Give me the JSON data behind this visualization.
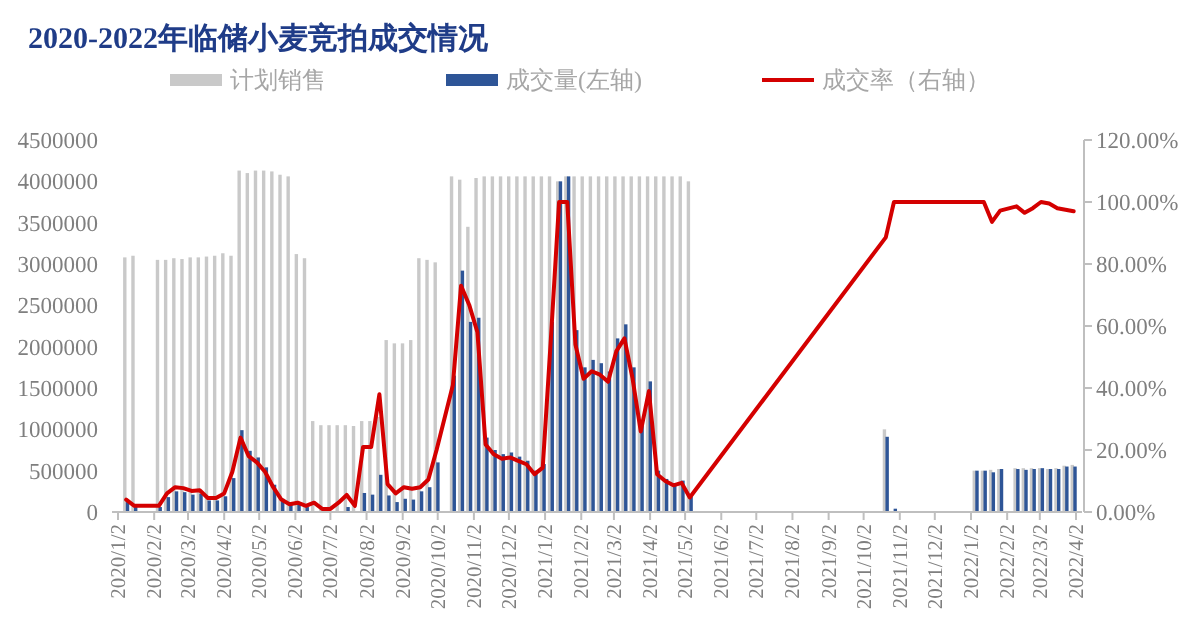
{
  "chart_data": {
    "type": "bar",
    "title": "2020-2022年临储小麦竞拍成交情况",
    "legend": "top",
    "xlim": [
      "2020-01-02",
      "2022-04-02"
    ],
    "xticks": [
      {
        "value": "2020-01-02",
        "label": "2020/1/2"
      },
      {
        "value": "2020-02-02",
        "label": "2020/2/2"
      },
      {
        "value": "2020-03-02",
        "label": "2020/3/2"
      },
      {
        "value": "2020-04-02",
        "label": "2020/4/2"
      },
      {
        "value": "2020-05-02",
        "label": "2020/5/2"
      },
      {
        "value": "2020-06-02",
        "label": "2020/6/2"
      },
      {
        "value": "2020-07-02",
        "label": "2020/7/2"
      },
      {
        "value": "2020-08-02",
        "label": "2020/8/2"
      },
      {
        "value": "2020-09-02",
        "label": "2020/9/2"
      },
      {
        "value": "2020-10-02",
        "label": "2020/10/2"
      },
      {
        "value": "2020-11-02",
        "label": "2020/11/2"
      },
      {
        "value": "2020-12-02",
        "label": "2020/12/2"
      },
      {
        "value": "2021-01-02",
        "label": "2021/1/2"
      },
      {
        "value": "2021-02-02",
        "label": "2021/2/2"
      },
      {
        "value": "2021-03-02",
        "label": "2021/3/2"
      },
      {
        "value": "2021-04-02",
        "label": "2021/4/2"
      },
      {
        "value": "2021-05-02",
        "label": "2021/5/2"
      },
      {
        "value": "2021-06-02",
        "label": "2021/6/2"
      },
      {
        "value": "2021-07-02",
        "label": "2021/7/2"
      },
      {
        "value": "2021-08-02",
        "label": "2021/8/2"
      },
      {
        "value": "2021-09-02",
        "label": "2021/9/2"
      },
      {
        "value": "2021-10-02",
        "label": "2021/10/2"
      },
      {
        "value": "2021-11-02",
        "label": "2021/11/2"
      },
      {
        "value": "2021-12-02",
        "label": "2021/12/2"
      },
      {
        "value": "2022-01-02",
        "label": "2022/1/2"
      },
      {
        "value": "2022-02-02",
        "label": "2022/2/2"
      },
      {
        "value": "2022-03-02",
        "label": "2022/3/2"
      },
      {
        "value": "2022-04-02",
        "label": "2022/4/2"
      }
    ],
    "ylim": [
      0,
      4500000
    ],
    "yticks": [
      0,
      500000,
      1000000,
      1500000,
      2000000,
      2500000,
      3000000,
      3500000,
      4000000,
      4500000
    ],
    "y2lim": [
      0,
      120
    ],
    "y2ticks": [
      {
        "value": 0,
        "label": "0.00%"
      },
      {
        "value": 20,
        "label": "20.00%"
      },
      {
        "value": 40,
        "label": "40.00%"
      },
      {
        "value": 60,
        "label": "60.00%"
      },
      {
        "value": 80,
        "label": "80.00%"
      },
      {
        "value": 100,
        "label": "100.00%"
      },
      {
        "value": 120,
        "label": "120.00%"
      }
    ],
    "x": [
      "2020-01-09",
      "2020-01-16",
      "2020-02-06",
      "2020-02-13",
      "2020-02-20",
      "2020-02-27",
      "2020-03-05",
      "2020-03-12",
      "2020-03-19",
      "2020-03-26",
      "2020-04-02",
      "2020-04-09",
      "2020-04-16",
      "2020-04-23",
      "2020-04-30",
      "2020-05-07",
      "2020-05-14",
      "2020-05-21",
      "2020-05-28",
      "2020-06-04",
      "2020-06-11",
      "2020-06-18",
      "2020-06-25",
      "2020-07-02",
      "2020-07-09",
      "2020-07-16",
      "2020-07-23",
      "2020-07-30",
      "2020-08-06",
      "2020-08-13",
      "2020-08-20",
      "2020-08-27",
      "2020-09-03",
      "2020-09-10",
      "2020-09-17",
      "2020-09-24",
      "2020-10-01",
      "2020-10-15",
      "2020-10-22",
      "2020-10-29",
      "2020-11-05",
      "2020-11-12",
      "2020-11-19",
      "2020-11-26",
      "2020-12-03",
      "2020-12-10",
      "2020-12-17",
      "2020-12-24",
      "2020-12-31",
      "2021-01-07",
      "2021-01-14",
      "2021-01-21",
      "2021-01-28",
      "2021-02-04",
      "2021-02-11",
      "2021-02-18",
      "2021-02-25",
      "2021-03-04",
      "2021-03-11",
      "2021-03-18",
      "2021-03-25",
      "2021-04-01",
      "2021-04-08",
      "2021-04-15",
      "2021-04-22",
      "2021-04-29",
      "2021-05-06",
      "2021-10-21",
      "2021-10-28",
      "2022-01-06",
      "2022-01-13",
      "2022-01-20",
      "2022-01-27",
      "2022-02-10",
      "2022-02-17",
      "2022-02-24",
      "2022-03-03",
      "2022-03-10",
      "2022-03-17",
      "2022-03-24",
      "2022-03-31"
    ],
    "series": [
      {
        "name": "计划销售",
        "color": "#c9c9c9",
        "values": [
          3080000,
          3100000,
          3050000,
          3050000,
          3070000,
          3060000,
          3080000,
          3080000,
          3090000,
          3100000,
          3130000,
          3100000,
          4130000,
          4100000,
          4130000,
          4130000,
          4120000,
          4080000,
          4060000,
          3120000,
          3070000,
          1100000,
          1050000,
          1050000,
          1050000,
          1050000,
          1040000,
          1100000,
          1100000,
          1150000,
          2080000,
          2040000,
          2040000,
          2080000,
          3070000,
          3050000,
          3020000,
          4060000,
          4020000,
          3450000,
          4040000,
          4060000,
          4060000,
          4060000,
          4060000,
          4060000,
          4060000,
          4060000,
          4060000,
          4060000,
          4000000,
          4060000,
          4060000,
          4060000,
          4060000,
          4060000,
          4060000,
          4060000,
          4060000,
          4060000,
          4060000,
          4060000,
          4060000,
          4060000,
          4060000,
          4060000,
          4000000,
          1000000,
          null,
          500000,
          500000,
          510000,
          520000,
          530000,
          530000,
          530000,
          530000,
          520000,
          530000,
          560000,
          570000
        ]
      },
      {
        "name": "成交量(左轴)",
        "color": "#2e5597",
        "values": [
          120000,
          60000,
          60000,
          180000,
          250000,
          240000,
          210000,
          220000,
          140000,
          140000,
          190000,
          410000,
          990000,
          740000,
          660000,
          540000,
          330000,
          160000,
          100000,
          90000,
          60000,
          null,
          10000,
          10000,
          null,
          60000,
          null,
          230000,
          210000,
          450000,
          200000,
          120000,
          160000,
          150000,
          250000,
          300000,
          600000,
          1650000,
          2920000,
          2300000,
          2350000,
          900000,
          750000,
          700000,
          720000,
          670000,
          620000,
          500000,
          580000,
          2300000,
          4000000,
          4060000,
          2200000,
          1750000,
          1840000,
          1800000,
          1700000,
          2100000,
          2270000,
          1750000,
          1050000,
          1580000,
          500000,
          400000,
          350000,
          380000,
          190000,
          910000,
          40000,
          500000,
          500000,
          480000,
          520000,
          520000,
          510000,
          520000,
          530000,
          520000,
          520000,
          550000,
          550000
        ]
      },
      {
        "name": "成交率（右轴）",
        "type": "line",
        "axis": "y2",
        "color": "#d40000",
        "values": [
          4,
          2,
          2,
          6,
          8,
          7.7,
          6.8,
          7,
          4.5,
          4.5,
          6,
          13,
          24,
          18,
          16,
          13,
          8,
          4,
          2.5,
          3,
          2,
          3,
          1,
          1,
          3,
          5.5,
          2,
          21,
          21,
          38,
          9,
          6,
          8,
          7.5,
          8,
          10.5,
          20,
          41,
          73,
          66.8,
          58,
          21.8,
          18.6,
          17.2,
          17.6,
          16.5,
          15.4,
          12.2,
          14.3,
          56,
          100,
          100,
          54,
          43,
          45.4,
          44.3,
          42,
          51.8,
          56,
          43,
          26,
          39,
          12.2,
          10,
          8.6,
          9.4,
          4.7,
          88.6,
          100,
          100,
          100,
          93.6,
          97.2,
          98.6,
          96.5,
          98,
          100,
          99.5,
          98,
          97.5,
          97
        ]
      }
    ]
  }
}
